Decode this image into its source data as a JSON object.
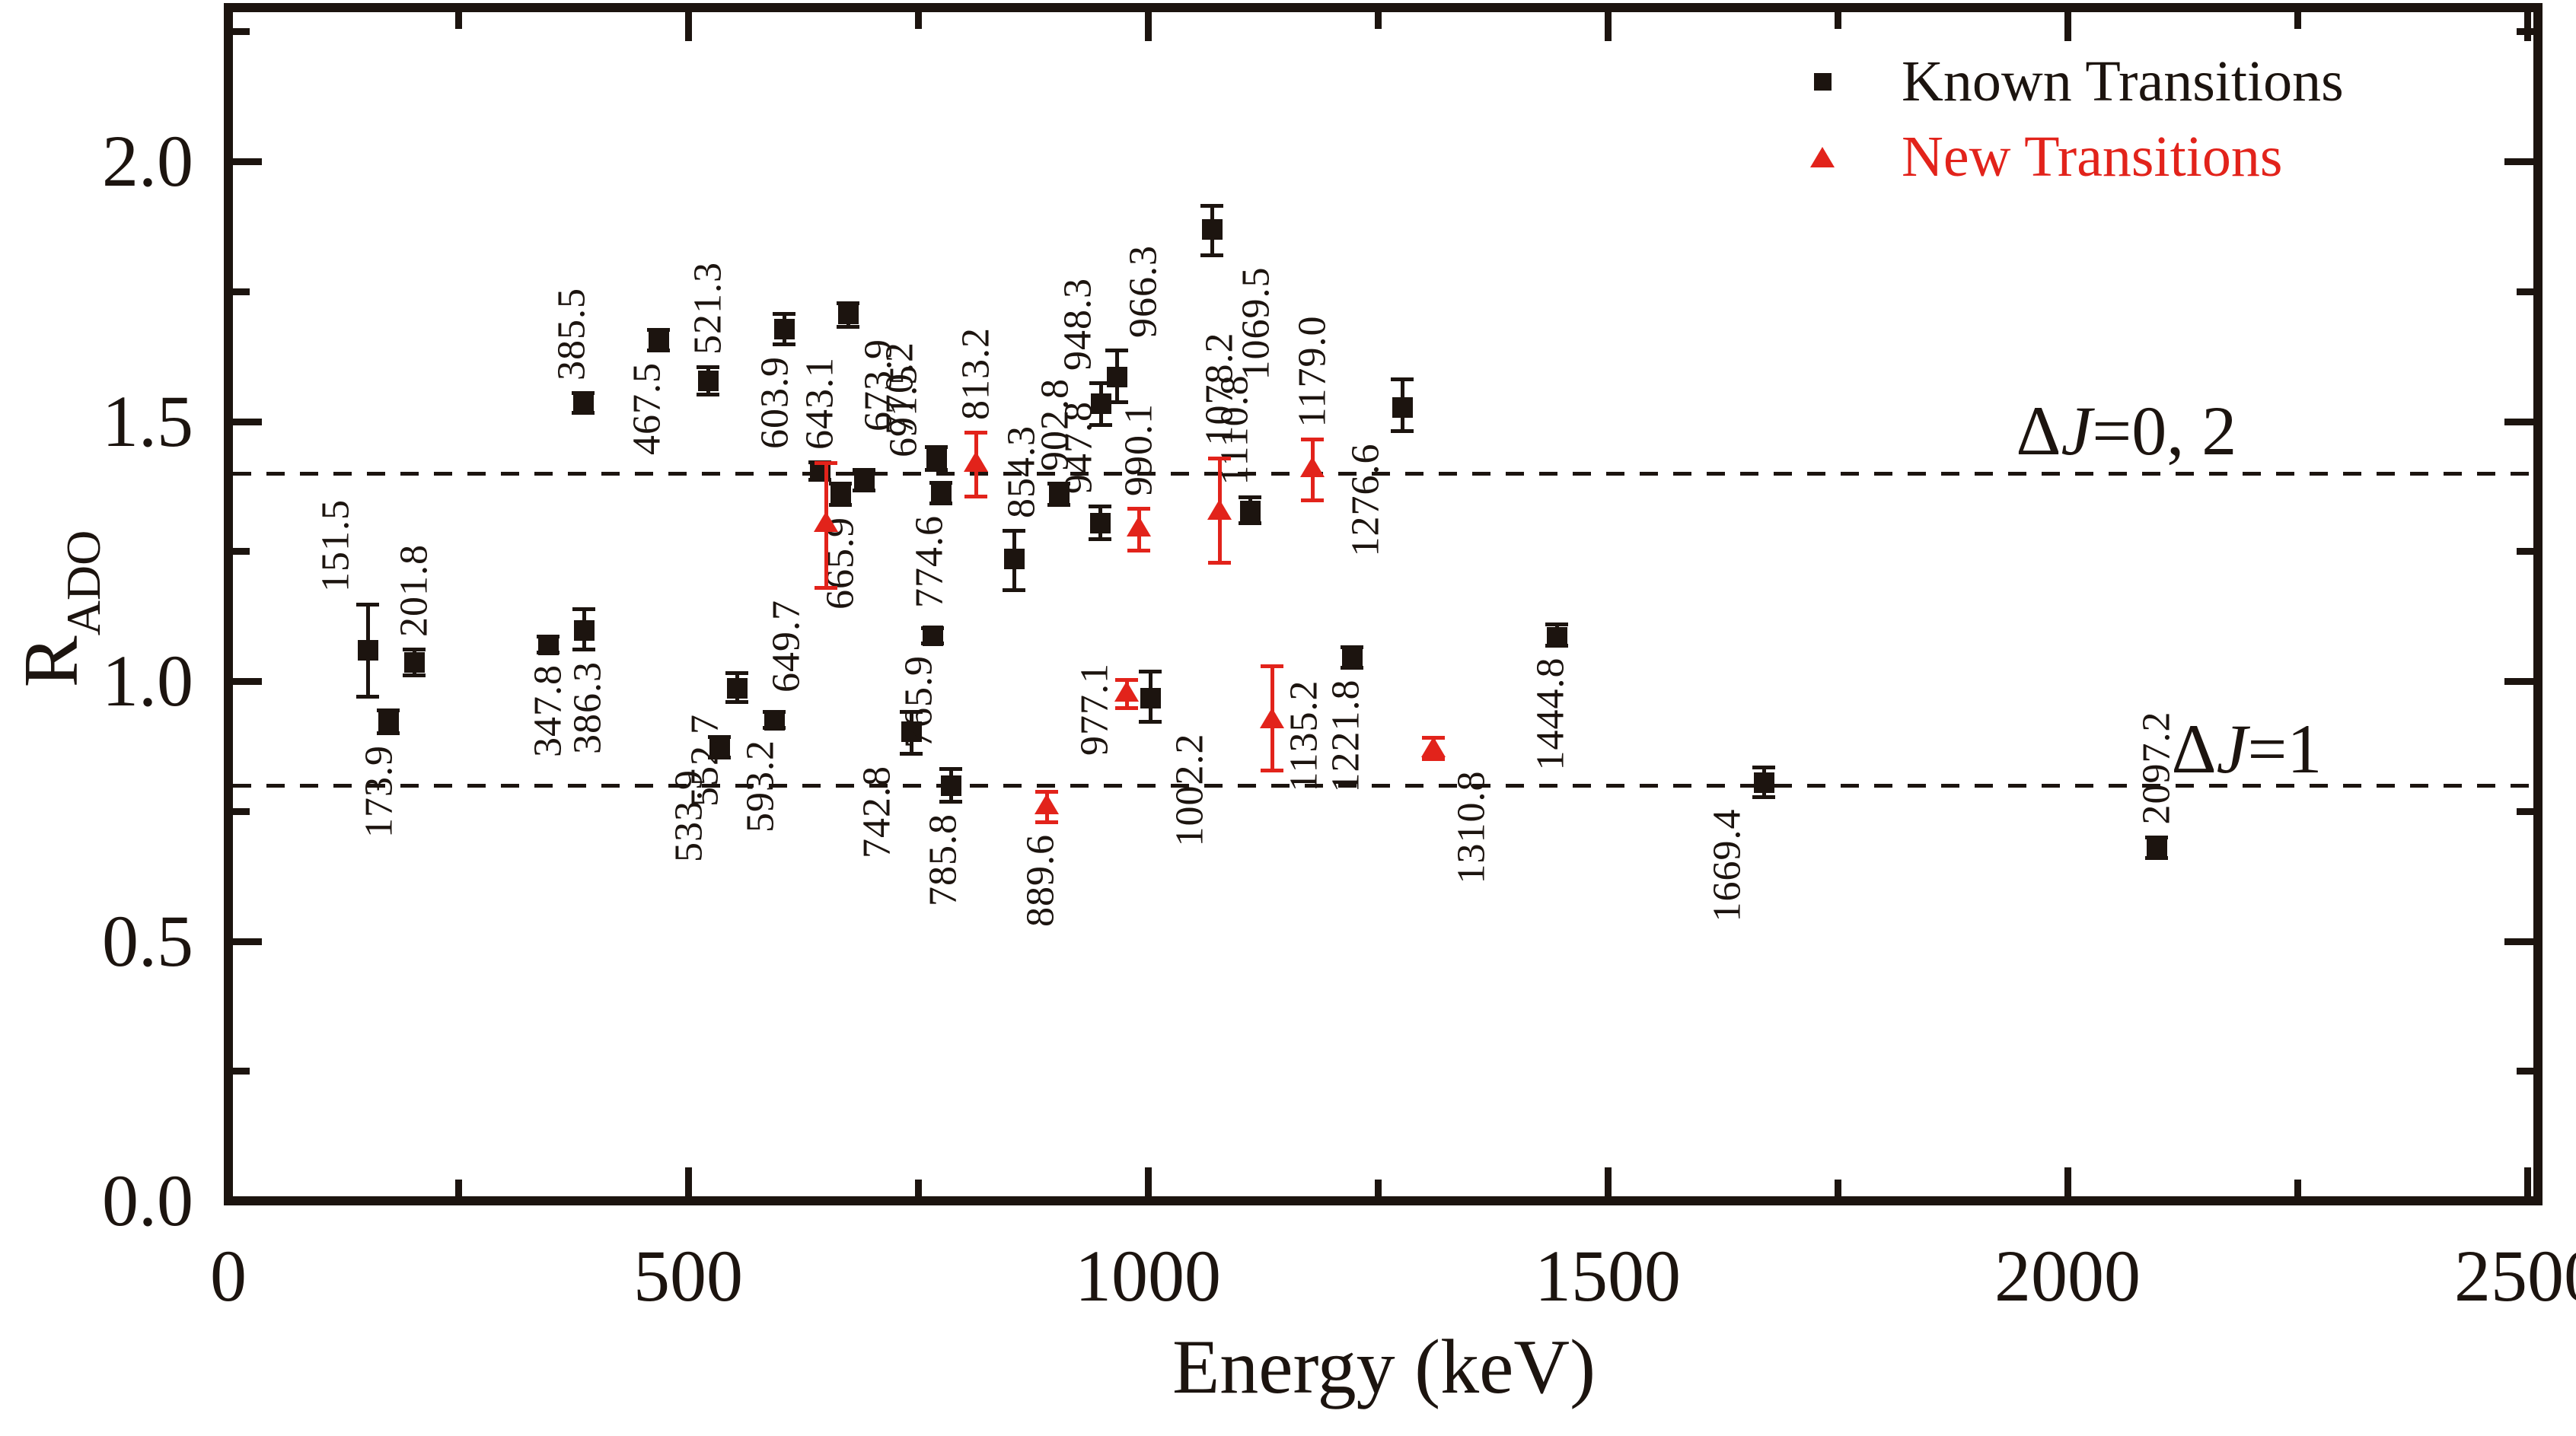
{
  "chart_data": {
    "type": "scatter",
    "title": "",
    "xlabel": "Energy (keV)",
    "ylabel_main": "R",
    "ylabel_sub": "ADO",
    "xlim": [
      0,
      2511
    ],
    "ylim": [
      0,
      2.296
    ],
    "grid": false,
    "legend_position": "top-right",
    "x_ticks": {
      "major": [
        0,
        500,
        1000,
        1500,
        2000,
        2500
      ],
      "labels": [
        "0",
        "500",
        "1000",
        "1500",
        "2000",
        "2500"
      ],
      "minor": [
        250,
        750,
        1250,
        1750,
        2250
      ]
    },
    "y_ticks": {
      "major": [
        0.0,
        0.5,
        1.0,
        1.5,
        2.0
      ],
      "labels": [
        "0.0",
        "0.5",
        "1.0",
        "1.5",
        "2.0"
      ],
      "minor": [
        0.25,
        0.75,
        1.25,
        1.75,
        2.25
      ]
    },
    "reference_lines": [
      {
        "r": 1.4,
        "style": "dashed",
        "label_delta": "Δ",
        "label_var": "J",
        "label_rest": "=0, 2",
        "label_e": 1944,
        "label_dy": -104
      },
      {
        "r": 0.8,
        "style": "dashed",
        "label_delta": "Δ",
        "label_var": "J",
        "label_rest": "=1",
        "label_e": 2113,
        "label_dy": -96
      }
    ],
    "palette": {
      "black": "#1c140f",
      "red": "#e2231b"
    },
    "series": [
      {
        "name": "Known Transitions",
        "marker": "square",
        "color": "#1c140f",
        "points": [
          {
            "e": 151.5,
            "label": "151.5",
            "r": 1.06,
            "ep": 0.088,
            "em": 0.09,
            "side": "above",
            "dx": -42
          },
          {
            "e": 173.9,
            "label": "173.9",
            "r": 0.923,
            "ep": 0.022,
            "em": 0.022,
            "side": "below",
            "dx": -12
          },
          {
            "e": 201.8,
            "label": "201.8",
            "r": 1.037,
            "ep": 0.025,
            "em": 0.025,
            "side": "above",
            "dx": 0
          },
          {
            "e": 347.8,
            "label": "347.8",
            "r": 1.071,
            "ep": 0.016,
            "em": 0.016,
            "side": "below",
            "dx": 0
          },
          {
            "e": 385.5,
            "label": "385.5",
            "r": 1.537,
            "ep": 0.018,
            "em": 0.02,
            "side": "above",
            "dx": -15
          },
          {
            "e": 386.3,
            "label": "386.3",
            "r": 1.098,
            "ep": 0.041,
            "em": 0.036,
            "side": "below",
            "dx": 5
          },
          {
            "e": 467.5,
            "label": "467.5",
            "r": 1.656,
            "ep": 0.02,
            "em": 0.019,
            "side": "below",
            "dx": -15
          },
          {
            "e": 521.3,
            "label": "521.3",
            "r": 1.578,
            "ep": 0.027,
            "em": 0.026,
            "side": "above",
            "dx": 0
          },
          {
            "e": 533.9,
            "label": "533.9",
            "r": 0.871,
            "ep": 0.022,
            "em": 0.017,
            "side": "below",
            "dx": -40
          },
          {
            "e": 552.7,
            "label": "552.7",
            "r": 0.987,
            "ep": 0.029,
            "em": 0.026,
            "side": "below",
            "dx": -42
          },
          {
            "e": 593.2,
            "label": "593.2",
            "r": 0.925,
            "ep": 0.016,
            "em": 0.015,
            "side": "below",
            "dx": -18
          },
          {
            "e": 603.9,
            "label": "603.9",
            "r": 1.678,
            "ep": 0.029,
            "em": 0.029,
            "side": "below",
            "dx": -12
          },
          {
            "e": 643.1,
            "label": "643.1",
            "r": 1.406,
            "ep": 0.016,
            "em": 0.018,
            "side": "above",
            "dx": 0
          },
          {
            "e": 665.9,
            "label": "665.9",
            "r": 1.362,
            "ep": 0.019,
            "em": 0.022,
            "side": "below",
            "dx": 0
          },
          {
            "e": 673.9,
            "label": "673.9",
            "r": 1.707,
            "ep": 0.021,
            "em": 0.024,
            "side": "below",
            "dx": 40
          },
          {
            "e": 691.5,
            "label": "691.5",
            "r": 1.388,
            "ep": 0.019,
            "em": 0.021,
            "side": "above",
            "dx": 52
          },
          {
            "e": 742.8,
            "label": "742.8",
            "r": 0.903,
            "ep": 0.038,
            "em": 0.042,
            "side": "below",
            "dx": -45
          },
          {
            "e": 765.9,
            "label": "765.9",
            "r": 1.088,
            "ep": 0.015,
            "em": 0.015,
            "side": "below",
            "dx": -18
          },
          {
            "e": 770.2,
            "label": "770.2",
            "r": 1.429,
            "ep": 0.022,
            "em": 0.022,
            "side": "above",
            "dx": -48
          },
          {
            "e": 774.6,
            "label": "774.6",
            "r": 1.362,
            "ep": 0.02,
            "em": 0.02,
            "side": "below",
            "dx": -15
          },
          {
            "e": 785.8,
            "label": "785.8",
            "r": 0.8,
            "ep": 0.032,
            "em": 0.031,
            "side": "below",
            "dx": -10
          },
          {
            "e": 854.3,
            "label": "854.3",
            "r": 1.235,
            "ep": 0.055,
            "em": 0.059,
            "side": "above",
            "dx": 10
          },
          {
            "e": 902.8,
            "label": "902.8",
            "r": 1.36,
            "ep": 0.02,
            "em": 0.02,
            "side": "above",
            "dx": -5
          },
          {
            "e": 947.8,
            "label": "947.8",
            "r": 1.305,
            "ep": 0.032,
            "em": 0.031,
            "side": "above",
            "dx": -28
          },
          {
            "e": 948.3,
            "label": "948.3",
            "r": 1.535,
            "ep": 0.039,
            "em": 0.041,
            "side": "above",
            "dx": -30
          },
          {
            "e": 966.3,
            "label": "966.3",
            "r": 1.586,
            "ep": 0.051,
            "em": 0.048,
            "side": "above",
            "dx": 35
          },
          {
            "e": 1002.2,
            "label": "1002.2",
            "r": 0.968,
            "ep": 0.051,
            "em": 0.045,
            "side": "below",
            "dx": 52
          },
          {
            "e": 1069.5,
            "label": "1069.5",
            "r": 1.869,
            "ep": 0.046,
            "em": 0.049,
            "side": "below",
            "dx": 58
          },
          {
            "e": 1110.8,
            "label": "1110.8",
            "r": 1.328,
            "ep": 0.026,
            "em": 0.024,
            "side": "above",
            "dx": -20
          },
          {
            "e": 1221.8,
            "label": "1221.8",
            "r": 1.049,
            "ep": 0.017,
            "em": 0.022,
            "side": "below",
            "dx": -8
          },
          {
            "e": 1276.6,
            "label": "1276.6",
            "r": 1.527,
            "ep": 0.054,
            "em": 0.046,
            "side": "below",
            "dx": -48
          },
          {
            "e": 1444.8,
            "label": "1444.8",
            "r": 1.085,
            "ep": 0.025,
            "em": 0.016,
            "side": "below",
            "dx": -8
          },
          {
            "e": 1669.4,
            "label": "1669.4",
            "r": 0.806,
            "ep": 0.029,
            "em": 0.028,
            "side": "below",
            "dx": -48
          },
          {
            "e": 2097.2,
            "label": "2097.2",
            "r": 0.681,
            "ep": 0.019,
            "em": 0.02,
            "side": "above",
            "dx": 0
          }
        ]
      },
      {
        "name": "New Transitions",
        "marker": "triangle",
        "color": "#e2231b",
        "points": [
          {
            "e": 649.7,
            "label": "649.7",
            "r": 1.305,
            "ep": 0.115,
            "em": 0.125,
            "side": "below",
            "dx": -52
          },
          {
            "e": 813.2,
            "label": "813.2",
            "r": 1.42,
            "ep": 0.059,
            "em": 0.064,
            "side": "above",
            "dx": 0
          },
          {
            "e": 889.6,
            "label": "889.6",
            "r": 0.762,
            "ep": 0.026,
            "em": 0.033,
            "side": "below",
            "dx": -8
          },
          {
            "e": 977.1,
            "label": "977.1",
            "r": 0.978,
            "ep": 0.025,
            "em": 0.029,
            "side": "left",
            "dx": 0
          },
          {
            "e": 990.1,
            "label": "990.1",
            "r": 1.296,
            "ep": 0.037,
            "em": 0.044,
            "side": "above",
            "dx": 0
          },
          {
            "e": 1078.2,
            "label": "1078.2",
            "r": 1.328,
            "ep": 0.101,
            "em": 0.1,
            "side": "above",
            "dx": 0
          },
          {
            "e": 1135.2,
            "label": "1135.2",
            "r": 0.927,
            "ep": 0.103,
            "em": 0.099,
            "side": "right",
            "dx": 0
          },
          {
            "e": 1179.0,
            "label": "1179.0",
            "r": 1.41,
            "ep": 0.055,
            "em": 0.062,
            "side": "above",
            "dx": 0
          },
          {
            "e": 1310.8,
            "label": "1310.8",
            "r": 0.871,
            "ep": 0.02,
            "em": 0.02,
            "side": "below",
            "dx": 50
          }
        ]
      }
    ]
  }
}
